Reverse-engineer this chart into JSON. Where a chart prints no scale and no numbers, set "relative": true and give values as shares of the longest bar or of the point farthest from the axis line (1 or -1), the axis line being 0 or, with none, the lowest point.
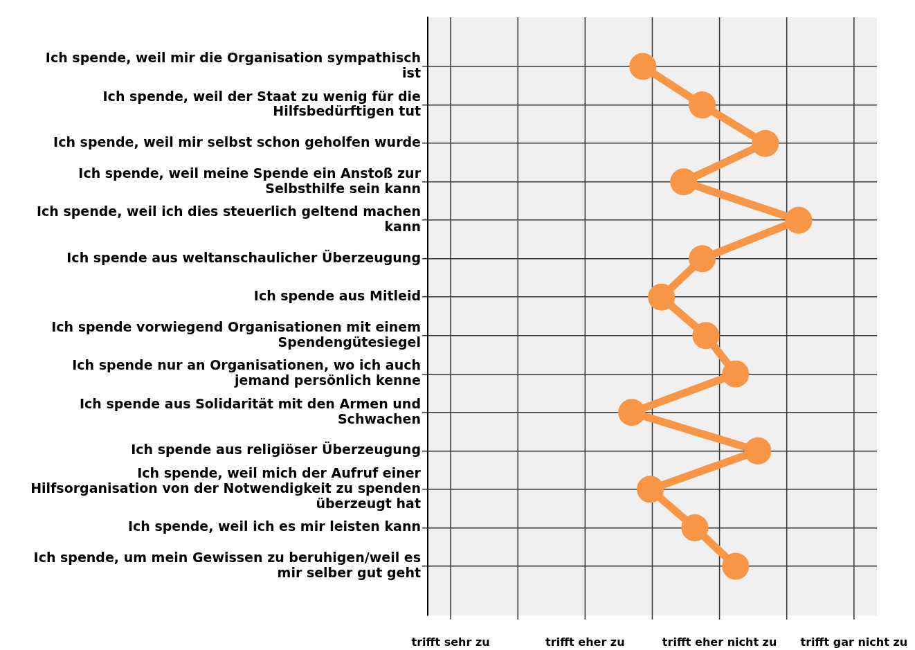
{
  "chart_data": {
    "type": "line",
    "orientation": "horizontal",
    "relative": true,
    "categories": [
      "Ich spende, weil mir die Organisation sympathisch ist",
      "Ich spende, weil der Staat zu wenig für die Hilfsbedürftigen tut",
      "Ich spende, weil mir selbst schon geholfen wurde",
      "Ich spende, weil meine Spende ein Anstoß zur Selbsthilfe sein kann",
      "Ich spende, weil ich dies steuerlich geltend machen kann",
      "Ich spende aus weltanschaulicher Überzeugung",
      "Ich spende aus Mitleid",
      "Ich spende vorwiegend Organisationen mit einem Spendengütesiegel",
      "Ich spende nur an Organisationen, wo ich auch jemand persönlich kenne",
      "Ich spende aus Solidarität mit den Armen und Schwachen",
      "Ich spende aus religiöser Überzeugung",
      "Ich spende, weil mich der Aufruf einer Hilfsorganisation von der Notwendigkeit zu spenden überzeugt hat",
      "Ich spende, weil ich es mir leisten kann",
      "Ich spende, um mein Gewissen zu beruhigen/weil es mir selber gut geht"
    ],
    "series": [
      {
        "color": "#f79646",
        "values": [
          0.58,
          0.74,
          0.91,
          0.69,
          1,
          0.74,
          0.63,
          0.75,
          0.83,
          0.55,
          0.89,
          0.6,
          0.72,
          0.83
        ]
      }
    ],
    "annotations": [
      "trifft sehr zu",
      "trifft eher zu",
      "trifft eher nicht zu",
      "trifft gar nicht zu"
    ],
    "grid": true,
    "legend": false,
    "marker": "circle",
    "line_style": "solid"
  }
}
